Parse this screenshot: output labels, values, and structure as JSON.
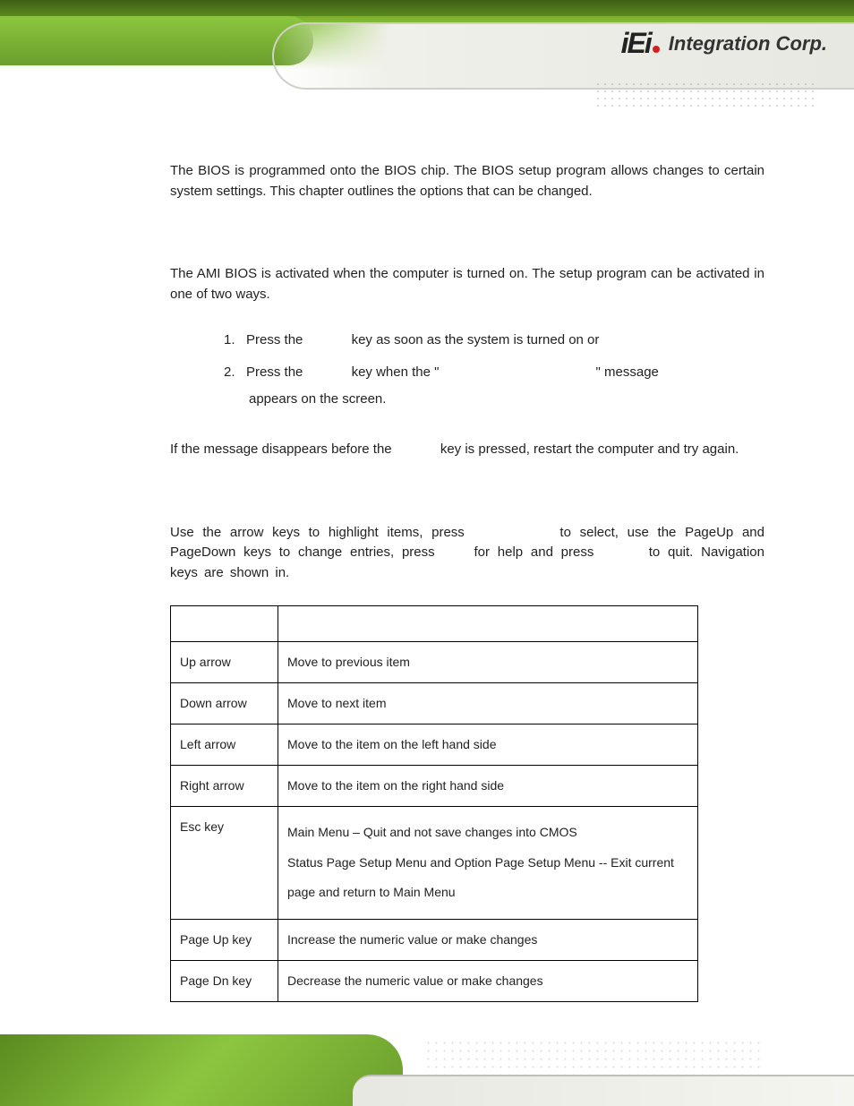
{
  "logo": {
    "brand": "iEi",
    "company": "Integration Corp."
  },
  "intro_paragraph": "The BIOS is programmed onto the BIOS chip. The BIOS setup program allows changes to certain system settings. This chapter outlines the options that can be changed.",
  "activation_paragraph": "The AMI BIOS is activated when the computer is turned on. The setup program can be activated in one of two ways.",
  "steps": {
    "s1_prefix": "1.",
    "s1_a": "Press the",
    "s1_b": "key as soon as the system is turned on or",
    "s2_prefix": "2.",
    "s2_a": "Press the",
    "s2_b": "key when the \"",
    "s2_c": "\" message",
    "s2_d": "appears on the screen."
  },
  "restart_a": "If the message disappears before the",
  "restart_b": "key is pressed, restart the computer and try again.",
  "nav_a": "Use the arrow keys to highlight items, press",
  "nav_b": "to select, use the PageUp and PageDown keys to change entries, press",
  "nav_c": "for help and press",
  "nav_d": "to quit. Navigation keys are shown in.",
  "table": {
    "rows": [
      {
        "key": "Up arrow",
        "func": "Move to previous item"
      },
      {
        "key": "Down arrow",
        "func": "Move to next item"
      },
      {
        "key": "Left arrow",
        "func": "Move to the item on the left hand side"
      },
      {
        "key": "Right arrow",
        "func": "Move to the item on the right hand side"
      },
      {
        "key": "Esc key",
        "func": "Main Menu – Quit and not save changes into CMOS\nStatus Page Setup Menu and Option Page Setup Menu -- Exit current page and return to Main Menu"
      },
      {
        "key": "Page Up key",
        "func": "Increase the numeric value or make changes"
      },
      {
        "key": "Page Dn key",
        "func": "Decrease the numeric value or make changes"
      }
    ]
  },
  "colors": {
    "header_green_dark": "#5a8a1f",
    "header_green_light": "#8cc63f",
    "logo_red": "#d42020",
    "text": "#222222",
    "border": "#000000"
  }
}
